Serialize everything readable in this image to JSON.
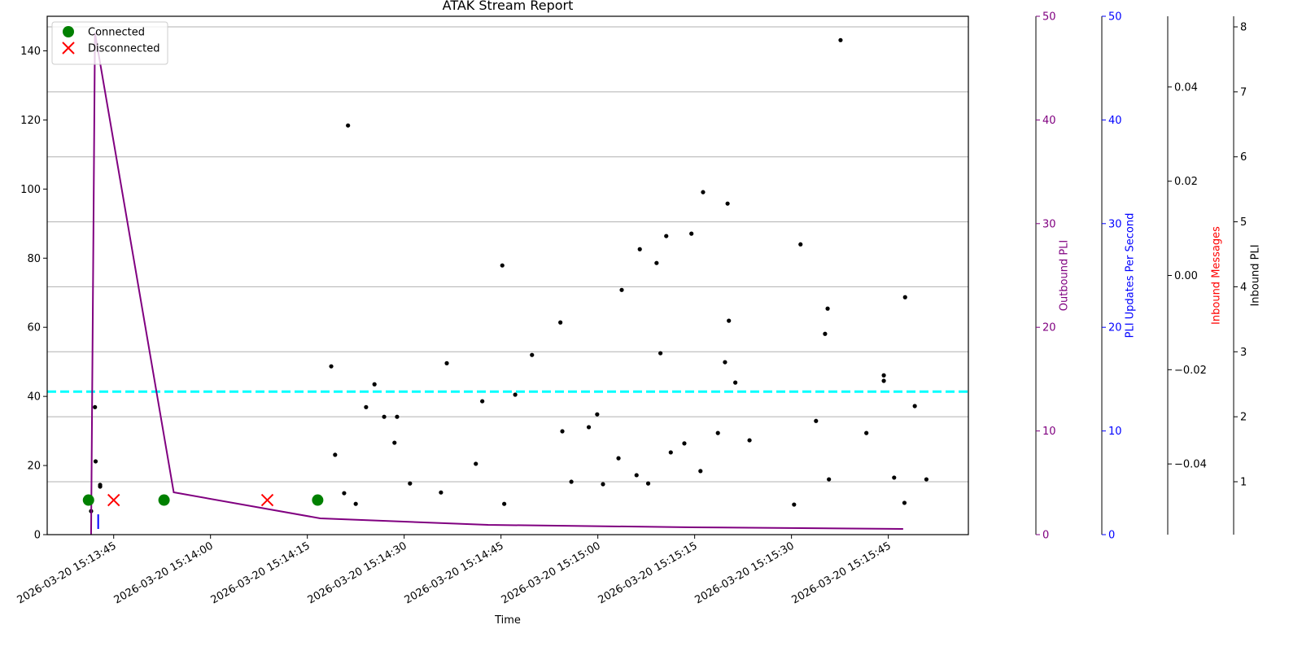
{
  "chart_data": {
    "type": "line",
    "title": "ATAK Stream Report",
    "xlabel": "Time",
    "xlim": [
      "2026-03-20 15:13:34.7",
      "2026-03-20 15:15:57.4"
    ],
    "xticks": [
      "2026-03-20 15:13:45",
      "2026-03-20 15:14:00",
      "2026-03-20 15:14:15",
      "2026-03-20 15:14:30",
      "2026-03-20 15:14:45",
      "2026-03-20 15:15:00",
      "2026-03-20 15:15:15",
      "2026-03-20 15:15:30",
      "2026-03-20 15:15:45"
    ],
    "ylim": [
      0,
      150
    ],
    "yticks": [
      0,
      20,
      40,
      60,
      80,
      100,
      120,
      140
    ],
    "legend": "upper left",
    "right_axes": [
      {
        "label": "Outbound PLI",
        "color": "#800080",
        "tick_color": "#800080",
        "ylim": [
          0,
          50
        ],
        "yticks": [
          0,
          10,
          20,
          30,
          40,
          50
        ],
        "grid": false
      },
      {
        "label": "PLI Updates Per Second",
        "color": "#0000ff",
        "tick_color": "#0000ff",
        "ylim": [
          0,
          50
        ],
        "yticks": [
          0,
          10,
          20,
          30,
          40,
          50
        ],
        "grid": false
      },
      {
        "label": "Inbound Messages",
        "color": "#ff0000",
        "tick_color": "#000000",
        "ylim": [
          -0.055,
          0.055
        ],
        "yticks": [
          {
            "value": -0.04,
            "label": "−0.04"
          },
          {
            "value": -0.02,
            "label": "−0.02"
          },
          {
            "value": 0,
            "label": "0.00"
          },
          0.02,
          0.04
        ],
        "grid": false
      },
      {
        "label": "Inbound PLI",
        "color": "#000000",
        "tick_color": "#000000",
        "ylim": [
          0.186,
          8.163
        ],
        "yticks": [
          1,
          2,
          3,
          4,
          5,
          6,
          7,
          8
        ],
        "grid": true
      }
    ],
    "hlines": [
      {
        "value": 41.4,
        "color": "#00ffff",
        "style": "dashed"
      }
    ],
    "series": [
      {
        "type": "scatter",
        "color": "#000000",
        "x": [
          "2026-03-20 15:13:41.5",
          "2026-03-20 15:13:42.1",
          "2026-03-20 15:13:42.2",
          "2026-03-20 15:13:42.9",
          "2026-03-20 15:13:42.9",
          "2026-03-20 15:14:18.7",
          "2026-03-20 15:14:19.3",
          "2026-03-20 15:14:20.7",
          "2026-03-20 15:14:21.3",
          "2026-03-20 15:14:22.5",
          "2026-03-20 15:14:24.1",
          "2026-03-20 15:14:25.4",
          "2026-03-20 15:14:26.9",
          "2026-03-20 15:14:28.5",
          "2026-03-20 15:14:28.9",
          "2026-03-20 15:14:30.9",
          "2026-03-20 15:14:35.7",
          "2026-03-20 15:14:36.6",
          "2026-03-20 15:14:41.1",
          "2026-03-20 15:14:42.1",
          "2026-03-20 15:14:45.2",
          "2026-03-20 15:14:45.5",
          "2026-03-20 15:14:47.2",
          "2026-03-20 15:14:49.8",
          "2026-03-20 15:14:54.2",
          "2026-03-20 15:14:54.5",
          "2026-03-20 15:14:55.9",
          "2026-03-20 15:14:58.6",
          "2026-03-20 15:14:59.9",
          "2026-03-20 15:15:00.8",
          "2026-03-20 15:15:03.2",
          "2026-03-20 15:15:03.7",
          "2026-03-20 15:15:06.0",
          "2026-03-20 15:15:06.5",
          "2026-03-20 15:15:07.8",
          "2026-03-20 15:15:09.1",
          "2026-03-20 15:15:09.7",
          "2026-03-20 15:15:10.6",
          "2026-03-20 15:15:11.3",
          "2026-03-20 15:15:13.4",
          "2026-03-20 15:15:14.5",
          "2026-03-20 15:15:15.9",
          "2026-03-20 15:15:16.3",
          "2026-03-20 15:15:18.6",
          "2026-03-20 15:15:19.7",
          "2026-03-20 15:15:20.1",
          "2026-03-20 15:15:20.3",
          "2026-03-20 15:15:21.3",
          "2026-03-20 15:15:23.5",
          "2026-03-20 15:15:30.4",
          "2026-03-20 15:15:31.4",
          "2026-03-20 15:15:33.8",
          "2026-03-20 15:15:35.2",
          "2026-03-20 15:15:35.6",
          "2026-03-20 15:15:35.8",
          "2026-03-20 15:15:37.6",
          "2026-03-20 15:15:41.6",
          "2026-03-20 15:15:44.3",
          "2026-03-20 15:15:44.3",
          "2026-03-20 15:15:45.9",
          "2026-03-20 15:15:47.5",
          "2026-03-20 15:15:47.6",
          "2026-03-20 15:15:49.1",
          "2026-03-20 15:15:50.9"
        ],
        "values": [
          6.8,
          36.9,
          21.2,
          14.4,
          13.9,
          48.7,
          23.1,
          12.0,
          118.4,
          8.9,
          36.9,
          43.5,
          34.1,
          26.6,
          34.1,
          14.8,
          12.2,
          49.6,
          20.5,
          38.6,
          77.9,
          8.9,
          40.5,
          52.0,
          61.4,
          29.9,
          15.3,
          31.1,
          34.8,
          14.6,
          22.1,
          70.8,
          17.2,
          82.6,
          14.8,
          78.6,
          52.5,
          86.4,
          23.8,
          26.4,
          87.1,
          18.4,
          99.1,
          29.4,
          49.9,
          95.8,
          61.9,
          44.0,
          27.3,
          8.7,
          84.0,
          32.9,
          58.1,
          65.4,
          16.0,
          143.1,
          29.4,
          46.1,
          44.5,
          16.5,
          9.2,
          68.7,
          37.2,
          16.0
        ]
      },
      {
        "type": "line",
        "color": "#800080",
        "axis": 0,
        "x": [
          "2026-03-20 15:13:41.5",
          "2026-03-20 15:13:42.1",
          "2026-03-20 15:13:54.3",
          "2026-03-20 15:14:17.0",
          "2026-03-20 15:14:43.0",
          "2026-03-20 15:15:14.5",
          "2026-03-20 15:15:47.3"
        ],
        "values": [
          0,
          48.4,
          4.08,
          1.57,
          0.94,
          0.71,
          0.55
        ]
      },
      {
        "type": "line",
        "color": "#0000ff",
        "axis": 1,
        "x": [
          "2026-03-20 15:13:42.6",
          "2026-03-20 15:13:42.6"
        ],
        "values": [
          1.96,
          0.55
        ]
      },
      {
        "type": "marker",
        "marker": "circle",
        "name": "Connected",
        "color": "#008000",
        "x": [
          "2026-03-20 15:13:41.1",
          "2026-03-20 15:13:52.8",
          "2026-03-20 15:14:16.6"
        ],
        "values": [
          10,
          10,
          10
        ]
      },
      {
        "type": "marker",
        "marker": "x",
        "name": "Disconnected",
        "color": "#ff0000",
        "x": [
          "2026-03-20 15:13:45.0",
          "2026-03-20 15:14:08.8"
        ],
        "values": [
          10,
          10
        ]
      }
    ]
  }
}
